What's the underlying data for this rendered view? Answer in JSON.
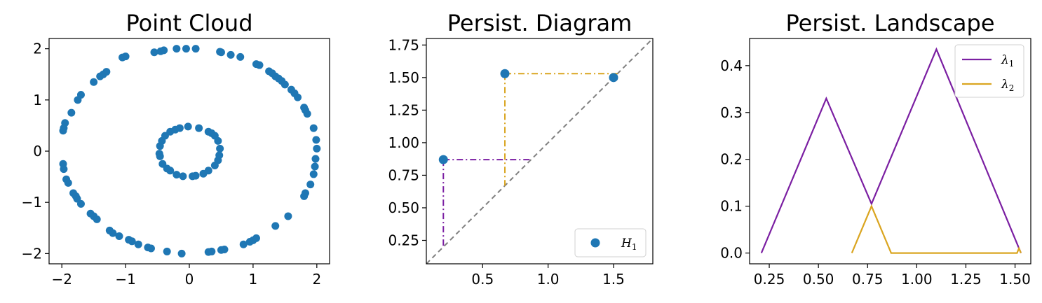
{
  "chart_data": [
    {
      "type": "scatter",
      "title": "Point Cloud",
      "xlim": [
        -2.2,
        2.2
      ],
      "ylim": [
        -2.2,
        2.2
      ],
      "xticks": [
        -2,
        -1,
        0,
        1,
        2
      ],
      "yticks": [
        -2,
        -1,
        0,
        1,
        2
      ],
      "xtick_labels": [
        "−2",
        "−1",
        "0",
        "1",
        "2"
      ],
      "ytick_labels": [
        "−2",
        "−1",
        "0",
        "1",
        "2"
      ],
      "color": "#1f77b4",
      "series": [
        {
          "points": [
            [
              -0.2,
              2.0
            ],
            [
              -0.05,
              2.0
            ],
            [
              0.1,
              2.0
            ],
            [
              -0.45,
              1.95
            ],
            [
              -0.55,
              1.93
            ],
            [
              -0.4,
              1.97
            ],
            [
              -1.0,
              1.85
            ],
            [
              -1.05,
              1.83
            ],
            [
              -1.3,
              1.55
            ],
            [
              -1.35,
              1.5
            ],
            [
              -1.4,
              1.46
            ],
            [
              -1.5,
              1.35
            ],
            [
              -1.7,
              1.1
            ],
            [
              -1.75,
              1.0
            ],
            [
              -1.85,
              0.75
            ],
            [
              -1.95,
              0.55
            ],
            [
              -1.97,
              0.45
            ],
            [
              -1.98,
              0.4
            ],
            [
              -1.98,
              -0.25
            ],
            [
              -1.97,
              -0.35
            ],
            [
              -1.93,
              -0.55
            ],
            [
              -1.9,
              -0.62
            ],
            [
              -1.82,
              -0.82
            ],
            [
              -1.78,
              -0.88
            ],
            [
              -1.76,
              -0.93
            ],
            [
              -1.7,
              -1.03
            ],
            [
              -1.55,
              -1.22
            ],
            [
              -1.5,
              -1.27
            ],
            [
              -1.45,
              -1.33
            ],
            [
              -1.25,
              -1.55
            ],
            [
              -1.2,
              -1.6
            ],
            [
              -1.1,
              -1.66
            ],
            [
              -0.95,
              -1.73
            ],
            [
              -0.9,
              -1.76
            ],
            [
              -0.8,
              -1.82
            ],
            [
              -0.65,
              -1.88
            ],
            [
              -0.6,
              -1.9
            ],
            [
              -0.35,
              -1.96
            ],
            [
              -0.12,
              -2.0
            ],
            [
              0.3,
              -1.97
            ],
            [
              0.35,
              -1.96
            ],
            [
              0.5,
              -1.93
            ],
            [
              0.55,
              -1.92
            ],
            [
              0.85,
              -1.82
            ],
            [
              0.95,
              -1.77
            ],
            [
              1.0,
              -1.74
            ],
            [
              1.05,
              -1.7
            ],
            [
              1.35,
              -1.46
            ],
            [
              1.55,
              -1.27
            ],
            [
              1.8,
              -0.88
            ],
            [
              1.82,
              -0.82
            ],
            [
              1.9,
              -0.65
            ],
            [
              1.95,
              -0.45
            ],
            [
              1.97,
              -0.3
            ],
            [
              1.98,
              -0.15
            ],
            [
              2.0,
              0.05
            ],
            [
              1.99,
              0.22
            ],
            [
              1.95,
              0.45
            ],
            [
              1.85,
              0.73
            ],
            [
              1.82,
              0.8
            ],
            [
              1.8,
              0.85
            ],
            [
              1.7,
              1.05
            ],
            [
              1.65,
              1.13
            ],
            [
              1.6,
              1.2
            ],
            [
              1.5,
              1.3
            ],
            [
              1.45,
              1.37
            ],
            [
              1.4,
              1.42
            ],
            [
              1.35,
              1.46
            ],
            [
              1.3,
              1.52
            ],
            [
              1.25,
              1.56
            ],
            [
              1.1,
              1.68
            ],
            [
              1.05,
              1.7
            ],
            [
              0.8,
              1.84
            ],
            [
              0.65,
              1.88
            ],
            [
              0.5,
              1.93
            ],
            [
              0.48,
              1.94
            ],
            [
              -0.02,
              0.48
            ],
            [
              0.15,
              0.45
            ],
            [
              0.3,
              0.38
            ],
            [
              0.35,
              0.35
            ],
            [
              0.4,
              0.3
            ],
            [
              0.45,
              0.2
            ],
            [
              0.48,
              0.05
            ],
            [
              0.47,
              -0.08
            ],
            [
              0.45,
              -0.18
            ],
            [
              0.4,
              -0.28
            ],
            [
              0.3,
              -0.38
            ],
            [
              0.22,
              -0.44
            ],
            [
              0.1,
              -0.48
            ],
            [
              0.05,
              -0.49
            ],
            [
              -0.1,
              -0.49
            ],
            [
              -0.2,
              -0.46
            ],
            [
              -0.3,
              -0.38
            ],
            [
              -0.35,
              -0.34
            ],
            [
              -0.42,
              -0.25
            ],
            [
              -0.46,
              -0.1
            ],
            [
              -0.47,
              -0.05
            ],
            [
              -0.46,
              0.1
            ],
            [
              -0.43,
              0.2
            ],
            [
              -0.38,
              0.3
            ],
            [
              -0.3,
              0.38
            ],
            [
              -0.22,
              0.42
            ],
            [
              -0.15,
              0.45
            ]
          ]
        }
      ]
    },
    {
      "type": "scatter",
      "title": "Persist. Diagram",
      "xlim": [
        0.07,
        1.8
      ],
      "ylim": [
        0.07,
        1.8
      ],
      "xticks": [
        0.5,
        1.0,
        1.5
      ],
      "yticks": [
        0.25,
        0.5,
        0.75,
        1.0,
        1.25,
        1.5,
        1.75
      ],
      "xtick_labels": [
        "0.5",
        "1.0",
        "1.5"
      ],
      "ytick_labels": [
        "0.25",
        "0.50",
        "0.75",
        "1.00",
        "1.25",
        "1.50",
        "1.75"
      ],
      "legend": {
        "label": "H",
        "subscript": "1",
        "position": "lower-right"
      },
      "series": [
        {
          "name": "H₁",
          "color": "#1f77b4",
          "points": [
            [
              0.2,
              0.87
            ],
            [
              0.67,
              1.53
            ],
            [
              1.5,
              1.5
            ]
          ]
        }
      ],
      "diagonal": {
        "color": "#808080",
        "style": "dashed"
      },
      "guides": [
        {
          "color": "#7b1fa2",
          "point": [
            0.2,
            0.87
          ]
        },
        {
          "color": "#daa520",
          "point": [
            0.67,
            1.53
          ]
        }
      ]
    },
    {
      "type": "line",
      "title": "Persist. Landscape",
      "xlim": [
        0.15,
        1.58
      ],
      "ylim": [
        -0.023,
        0.458
      ],
      "xticks": [
        0.25,
        0.5,
        0.75,
        1.0,
        1.25,
        1.5
      ],
      "yticks": [
        0.0,
        0.1,
        0.2,
        0.3,
        0.4
      ],
      "xtick_labels": [
        "0.25",
        "0.50",
        "0.75",
        "1.00",
        "1.25",
        "1.50"
      ],
      "ytick_labels": [
        "0.0",
        "0.1",
        "0.2",
        "0.3",
        "0.4"
      ],
      "legend_position": "top-right",
      "series": [
        {
          "name": "λ₁",
          "label": "λ",
          "subscript": "1",
          "color": "#7b1fa2",
          "x": [
            0.21,
            0.54,
            0.77,
            1.1,
            1.53
          ],
          "y": [
            0.0,
            0.33,
            0.105,
            0.435,
            0.0
          ]
        },
        {
          "name": "λ₂",
          "label": "λ",
          "subscript": "2",
          "color": "#daa520",
          "x": [
            0.67,
            0.77,
            0.87,
            1.51,
            1.52,
            1.53
          ],
          "y": [
            0.0,
            0.1,
            0.0,
            0.0,
            0.01,
            0.0
          ]
        }
      ]
    }
  ]
}
